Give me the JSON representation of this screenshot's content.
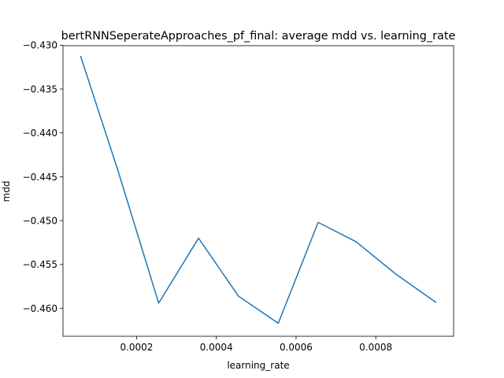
{
  "chart_data": {
    "type": "line",
    "title": "bertRNNSeperateApproaches_pf_final: average mdd vs. learning_rate",
    "xlabel": "learning_rate",
    "ylabel": "mdd",
    "xlim": [
      1.54e-05,
      0.0009952
    ],
    "ylim": [
      -0.46318,
      -0.43006
    ],
    "grid": false,
    "x_ticks": [
      0.0002,
      0.0004,
      0.0006,
      0.0008
    ],
    "x_tick_labels": [
      "0.0002",
      "0.0004",
      "0.0006",
      "0.0008"
    ],
    "y_ticks": [
      -0.43,
      -0.435,
      -0.44,
      -0.445,
      -0.45,
      -0.455,
      -0.46
    ],
    "y_tick_labels": [
      "−0.430",
      "−0.435",
      "−0.440",
      "−0.445",
      "−0.450",
      "−0.455",
      "−0.460"
    ],
    "series": [
      {
        "color": "#1f77b4",
        "x": [
          5.99e-05,
          0.0001554,
          0.0002554,
          0.0003554,
          0.0004554,
          0.0005554,
          0.0006554,
          0.0007504,
          0.0008504,
          0.0009504
        ],
        "y": [
          -0.4313,
          -0.4446,
          -0.4594,
          -0.452,
          -0.4586,
          -0.4617,
          -0.4502,
          -0.4524,
          -0.4561,
          -0.4593
        ]
      }
    ]
  }
}
